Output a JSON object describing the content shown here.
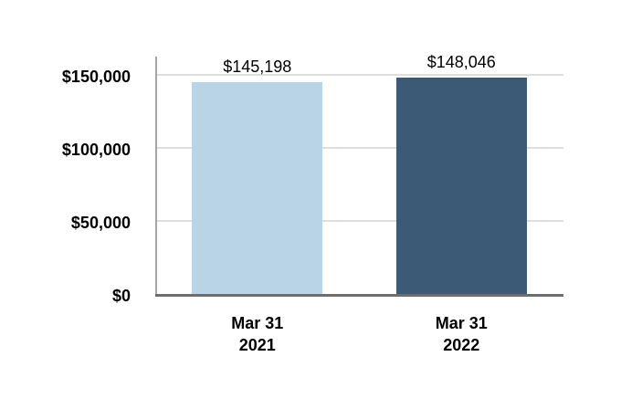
{
  "chart_data": {
    "type": "bar",
    "title": "",
    "categories": [
      "Mar 31 2021",
      "Mar 31 2022"
    ],
    "x_tick_lines": [
      [
        "Mar 31",
        "2021"
      ],
      [
        "Mar 31",
        "2022"
      ]
    ],
    "values": [
      145198,
      148046
    ],
    "data_labels": [
      "$145,198",
      "$148,046"
    ],
    "bar_colors": [
      "#bad4e7",
      "#3c5a76"
    ],
    "y_ticks": [
      {
        "value": 0,
        "label": "$0"
      },
      {
        "value": 50000,
        "label": "$50,000"
      },
      {
        "value": 100000,
        "label": "$100,000"
      },
      {
        "value": 150000,
        "label": "$150,000"
      }
    ],
    "ylim": [
      0,
      162500
    ],
    "grid": true,
    "legend": false,
    "axis_colors": {
      "gridline": "#dedede",
      "y_axis": "#a6a6a6",
      "x_axis": "#6d6d6d",
      "text": "#000000"
    }
  }
}
